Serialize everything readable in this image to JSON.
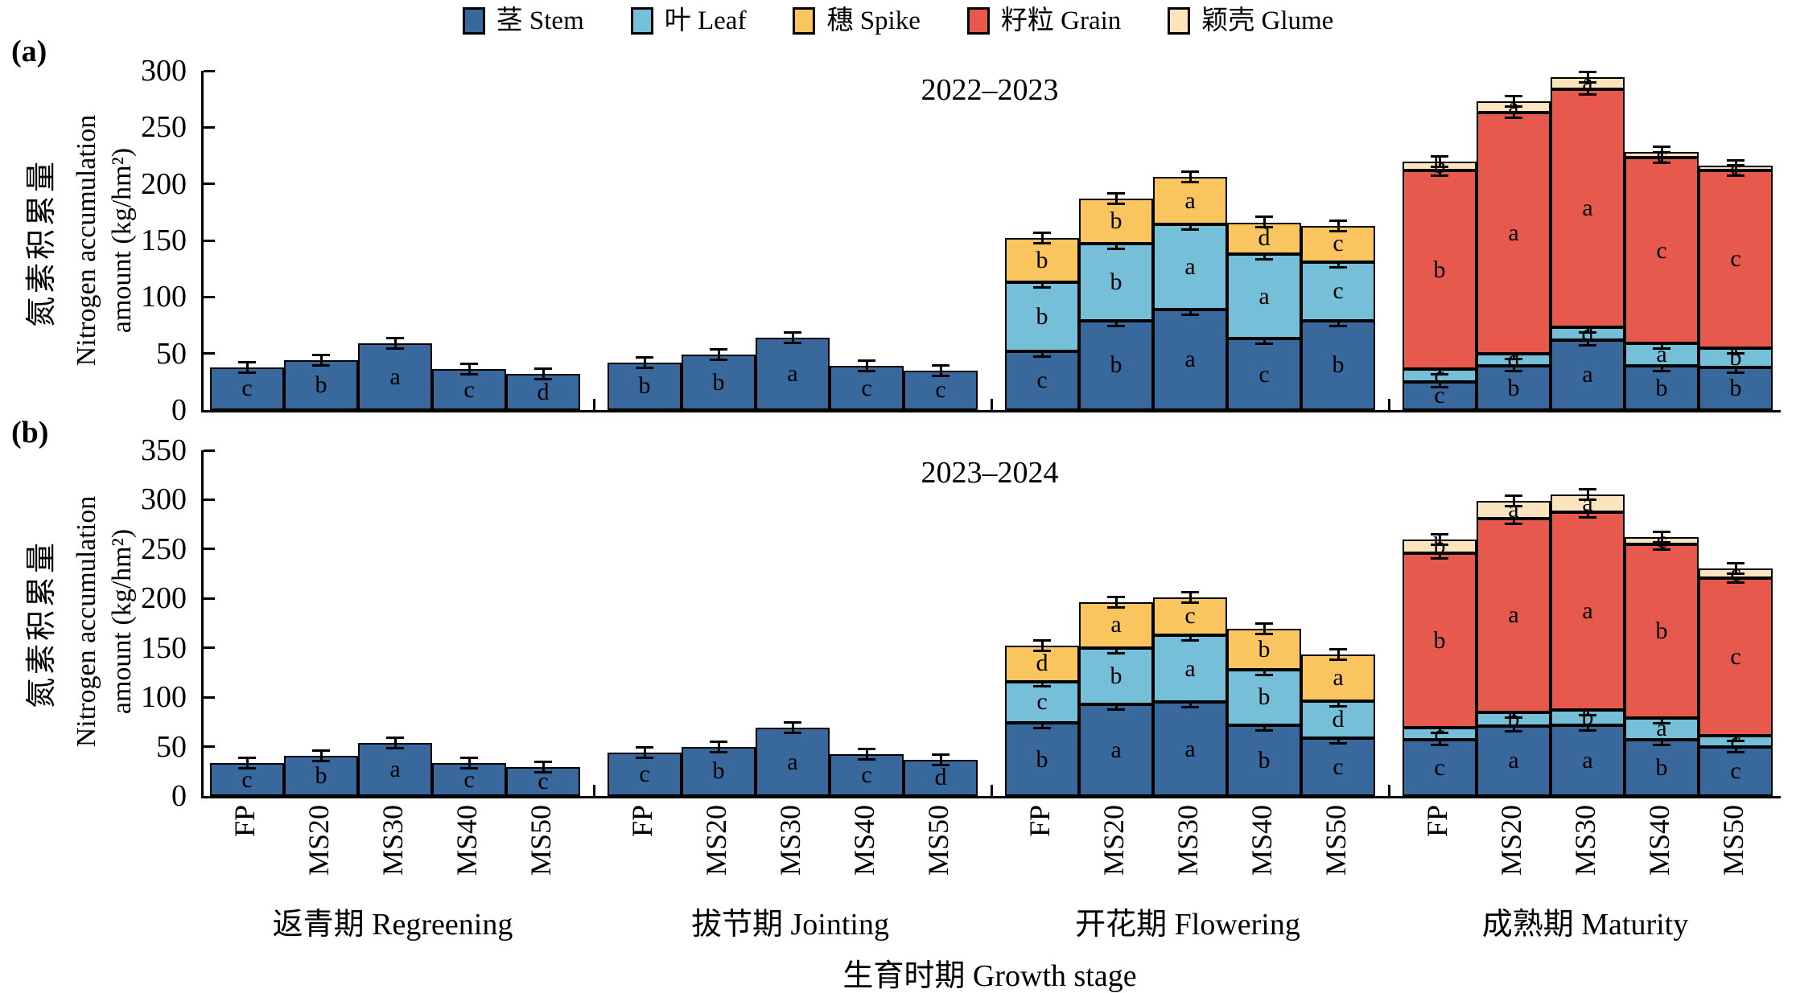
{
  "figure": {
    "x_axis_label": "生育时期 Growth stage",
    "y_label_zh": "氮素积累量",
    "y_label_en_line1": "Nitrogen accumulation",
    "y_label_en_line2": "amount (kg/hm²)",
    "colors": {
      "Stem": "#39689C",
      "Leaf": "#76BFD9",
      "Spike": "#FAC45E",
      "Grain": "#E6594C",
      "Glume": "#FBE4BE"
    },
    "legend": [
      {
        "series": "Stem",
        "label": "茎 Stem"
      },
      {
        "series": "Leaf",
        "label": "叶 Leaf"
      },
      {
        "series": "Spike",
        "label": "穗 Spike"
      },
      {
        "series": "Grain",
        "label": "籽粒 Grain"
      },
      {
        "series": "Glume",
        "label": "颖壳 Glume"
      }
    ]
  },
  "chart_data": [
    {
      "type": "bar",
      "stacked": true,
      "panel_label": "(a)",
      "title": "2022–2023",
      "ylabel": "氮素积累量 Nitrogen accumulation amount (kg/hm²)",
      "ylim": [
        0,
        300
      ],
      "ytick_step": 50,
      "series_order": [
        "Stem",
        "Leaf",
        "Spike",
        "Grain",
        "Glume"
      ],
      "groups": [
        {
          "label": "返青期 Regreening",
          "bars": [
            {
              "treatment": "FP",
              "segments": [
                [
                  "Stem",
                  38,
                  "c"
                ]
              ]
            },
            {
              "treatment": "MS20",
              "segments": [
                [
                  "Stem",
                  44,
                  "b"
                ]
              ]
            },
            {
              "treatment": "MS30",
              "segments": [
                [
                  "Stem",
                  59,
                  "a"
                ]
              ]
            },
            {
              "treatment": "MS40",
              "segments": [
                [
                  "Stem",
                  36,
                  "c"
                ]
              ]
            },
            {
              "treatment": "MS50",
              "segments": [
                [
                  "Stem",
                  32,
                  "d"
                ]
              ]
            }
          ]
        },
        {
          "label": "拔节期 Jointing",
          "bars": [
            {
              "treatment": "FP",
              "segments": [
                [
                  "Stem",
                  42,
                  "b"
                ]
              ]
            },
            {
              "treatment": "MS20",
              "segments": [
                [
                  "Stem",
                  49,
                  "b"
                ]
              ]
            },
            {
              "treatment": "MS30",
              "segments": [
                [
                  "Stem",
                  64,
                  "a"
                ]
              ]
            },
            {
              "treatment": "MS40",
              "segments": [
                [
                  "Stem",
                  39,
                  "c"
                ]
              ]
            },
            {
              "treatment": "MS50",
              "segments": [
                [
                  "Stem",
                  35,
                  "c"
                ]
              ]
            }
          ]
        },
        {
          "label": "开花期 Flowering",
          "bars": [
            {
              "treatment": "FP",
              "segments": [
                [
                  "Stem",
                  52,
                  "c"
                ],
                [
                  "Leaf",
                  61,
                  "b"
                ],
                [
                  "Spike",
                  39,
                  "b"
                ]
              ]
            },
            {
              "treatment": "MS20",
              "segments": [
                [
                  "Stem",
                  79,
                  "b"
                ],
                [
                  "Leaf",
                  68,
                  "b"
                ],
                [
                  "Spike",
                  40,
                  "b"
                ]
              ]
            },
            {
              "treatment": "MS30",
              "segments": [
                [
                  "Stem",
                  89,
                  "a"
                ],
                [
                  "Leaf",
                  75,
                  "a"
                ],
                [
                  "Spike",
                  42,
                  "a"
                ]
              ]
            },
            {
              "treatment": "MS40",
              "segments": [
                [
                  "Stem",
                  63,
                  "c"
                ],
                [
                  "Leaf",
                  75,
                  "a"
                ],
                [
                  "Spike",
                  28,
                  "d"
                ]
              ]
            },
            {
              "treatment": "MS50",
              "segments": [
                [
                  "Stem",
                  79,
                  "b"
                ],
                [
                  "Leaf",
                  52,
                  "c"
                ],
                [
                  "Spike",
                  32,
                  "c"
                ]
              ]
            }
          ]
        },
        {
          "label": "成熟期 Maturity",
          "bars": [
            {
              "treatment": "FP",
              "segments": [
                [
                  "Stem",
                  25,
                  "c"
                ],
                [
                  "Leaf",
                  11,
                  "c"
                ],
                [
                  "Grain",
                  176,
                  "b"
                ],
                [
                  "Glume",
                  8,
                  "b"
                ]
              ]
            },
            {
              "treatment": "MS20",
              "segments": [
                [
                  "Stem",
                  39,
                  "b"
                ],
                [
                  "Leaf",
                  11,
                  "d"
                ],
                [
                  "Grain",
                  213,
                  "a"
                ],
                [
                  "Glume",
                  10,
                  "a"
                ]
              ]
            },
            {
              "treatment": "MS30",
              "segments": [
                [
                  "Stem",
                  62,
                  "a"
                ],
                [
                  "Leaf",
                  11,
                  "d"
                ],
                [
                  "Grain",
                  211,
                  "a"
                ],
                [
                  "Glume",
                  10,
                  "a"
                ]
              ]
            },
            {
              "treatment": "MS40",
              "segments": [
                [
                  "Stem",
                  39,
                  "b"
                ],
                [
                  "Leaf",
                  20,
                  "a"
                ],
                [
                  "Grain",
                  164,
                  "c"
                ],
                [
                  "Glume",
                  5,
                  "c"
                ]
              ]
            },
            {
              "treatment": "MS50",
              "segments": [
                [
                  "Stem",
                  38,
                  "b"
                ],
                [
                  "Leaf",
                  17,
                  "b"
                ],
                [
                  "Grain",
                  157,
                  "c"
                ],
                [
                  "Glume",
                  4,
                  "c"
                ]
              ]
            }
          ]
        }
      ]
    },
    {
      "type": "bar",
      "stacked": true,
      "panel_label": "(b)",
      "title": "2023–2024",
      "ylabel": "氮素积累量 Nitrogen accumulation amount (kg/hm²)",
      "ylim": [
        0,
        350
      ],
      "ytick_step": 50,
      "series_order": [
        "Stem",
        "Leaf",
        "Spike",
        "Grain",
        "Glume"
      ],
      "groups": [
        {
          "label": "返青期 Regreening",
          "bars": [
            {
              "treatment": "FP",
              "segments": [
                [
                  "Stem",
                  33,
                  "c"
                ]
              ]
            },
            {
              "treatment": "MS20",
              "segments": [
                [
                  "Stem",
                  41,
                  "b"
                ]
              ]
            },
            {
              "treatment": "MS30",
              "segments": [
                [
                  "Stem",
                  54,
                  "a"
                ]
              ]
            },
            {
              "treatment": "MS40",
              "segments": [
                [
                  "Stem",
                  33,
                  "c"
                ]
              ]
            },
            {
              "treatment": "MS50",
              "segments": [
                [
                  "Stem",
                  29,
                  "c"
                ]
              ]
            }
          ]
        },
        {
          "label": "拔节期 Jointing",
          "bars": [
            {
              "treatment": "FP",
              "segments": [
                [
                  "Stem",
                  44,
                  "c"
                ]
              ]
            },
            {
              "treatment": "MS20",
              "segments": [
                [
                  "Stem",
                  50,
                  "b"
                ]
              ]
            },
            {
              "treatment": "MS30",
              "segments": [
                [
                  "Stem",
                  69,
                  "a"
                ]
              ]
            },
            {
              "treatment": "MS40",
              "segments": [
                [
                  "Stem",
                  42,
                  "c"
                ]
              ]
            },
            {
              "treatment": "MS50",
              "segments": [
                [
                  "Stem",
                  37,
                  "d"
                ]
              ]
            }
          ]
        },
        {
          "label": "开花期 Flowering",
          "bars": [
            {
              "treatment": "FP",
              "segments": [
                [
                  "Stem",
                  74,
                  "b"
                ],
                [
                  "Leaf",
                  42,
                  "c"
                ],
                [
                  "Spike",
                  36,
                  "d"
                ]
              ]
            },
            {
              "treatment": "MS20",
              "segments": [
                [
                  "Stem",
                  93,
                  "a"
                ],
                [
                  "Leaf",
                  57,
                  "b"
                ],
                [
                  "Spike",
                  46,
                  "a"
                ]
              ]
            },
            {
              "treatment": "MS30",
              "segments": [
                [
                  "Stem",
                  95,
                  "a"
                ],
                [
                  "Leaf",
                  68,
                  "a"
                ],
                [
                  "Spike",
                  38,
                  "c"
                ]
              ]
            },
            {
              "treatment": "MS40",
              "segments": [
                [
                  "Stem",
                  72,
                  "b"
                ],
                [
                  "Leaf",
                  56,
                  "b"
                ],
                [
                  "Spike",
                  41,
                  "b"
                ]
              ]
            },
            {
              "treatment": "MS50",
              "segments": [
                [
                  "Stem",
                  59,
                  "c"
                ],
                [
                  "Leaf",
                  37,
                  "d"
                ],
                [
                  "Spike",
                  47,
                  "a"
                ]
              ]
            }
          ]
        },
        {
          "label": "成熟期 Maturity",
          "bars": [
            {
              "treatment": "FP",
              "segments": [
                [
                  "Stem",
                  57,
                  "c"
                ],
                [
                  "Leaf",
                  12,
                  "c"
                ],
                [
                  "Grain",
                  177,
                  "b"
                ],
                [
                  "Glume",
                  14,
                  "b"
                ]
              ]
            },
            {
              "treatment": "MS20",
              "segments": [
                [
                  "Stem",
                  71,
                  "a"
                ],
                [
                  "Leaf",
                  14,
                  "b"
                ],
                [
                  "Grain",
                  196,
                  "a"
                ],
                [
                  "Glume",
                  18,
                  "a"
                ]
              ]
            },
            {
              "treatment": "MS30",
              "segments": [
                [
                  "Stem",
                  72,
                  "a"
                ],
                [
                  "Leaf",
                  15,
                  "b"
                ],
                [
                  "Grain",
                  200,
                  "a"
                ],
                [
                  "Glume",
                  18,
                  "a"
                ]
              ]
            },
            {
              "treatment": "MS40",
              "segments": [
                [
                  "Stem",
                  57,
                  "b"
                ],
                [
                  "Leaf",
                  22,
                  "a"
                ],
                [
                  "Grain",
                  176,
                  "b"
                ],
                [
                  "Glume",
                  7,
                  "c"
                ]
              ]
            },
            {
              "treatment": "MS50",
              "segments": [
                [
                  "Stem",
                  50,
                  "c"
                ],
                [
                  "Leaf",
                  11,
                  "c"
                ],
                [
                  "Grain",
                  160,
                  "c"
                ],
                [
                  "Glume",
                  9,
                  "c"
                ]
              ]
            }
          ]
        }
      ]
    }
  ]
}
